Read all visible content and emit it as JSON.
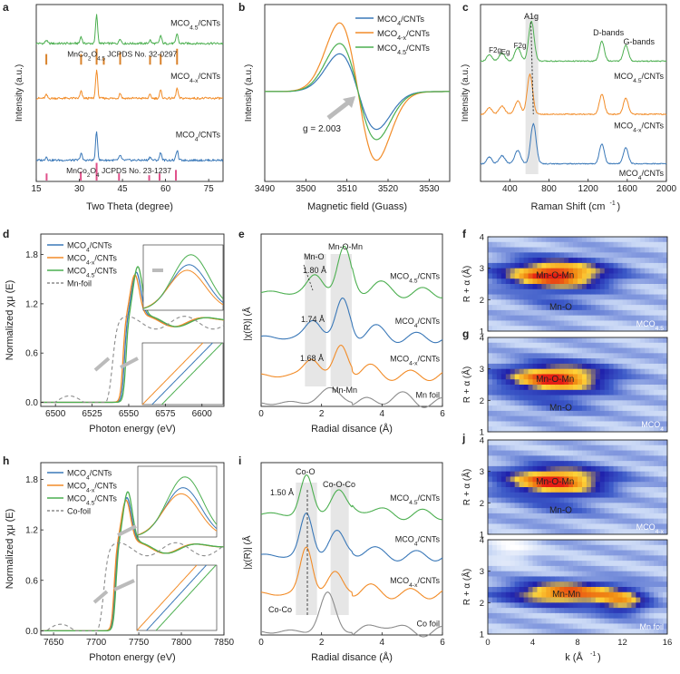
{
  "figure": {
    "panel_labels": [
      "a",
      "b",
      "c",
      "d",
      "e",
      "f",
      "g",
      "h",
      "i",
      "j"
    ]
  },
  "colors": {
    "mco45": "#4caf50",
    "mco4x": "#f28c28",
    "mco4": "#3a78b8",
    "foil": "#8c8c8c",
    "ref_orange": "#d9822b",
    "ref_pink": "#e0508a"
  },
  "chart_data": [
    {
      "id": "a",
      "type": "line",
      "xlabel": "Two Theta (degree)",
      "ylabel": "Intensity (a.u.)",
      "xlim": [
        15,
        80
      ],
      "xticks": [
        15,
        30,
        45,
        60,
        75
      ],
      "series": [
        {
          "name": "MCO4.5/CNTs",
          "color_key": "mco45",
          "peaks": [
            18.5,
            30.6,
            36.0,
            44.2,
            54.6,
            58.3,
            64.0
          ]
        },
        {
          "name": "MCO4-x/CNTs",
          "color_key": "mco4x",
          "peaks": [
            18.5,
            30.6,
            36.0,
            44.2,
            54.6,
            58.3,
            64.0
          ]
        },
        {
          "name": "MCO4/CNTs",
          "color_key": "mco4",
          "peaks": [
            18.5,
            30.6,
            36.0,
            44.2,
            54.6,
            58.3,
            64.0
          ]
        }
      ],
      "references": [
        {
          "label": "MnCo2O4.5 JCPDS No. 32-0297",
          "color_key": "ref_orange",
          "positions": [
            18.5,
            30.6,
            36.0,
            38.5,
            44.2,
            54.6,
            58.3,
            64.0
          ]
        },
        {
          "label": "MnCo2O4 JCPDS No. 23-1237",
          "color_key": "ref_pink",
          "positions": [
            18.6,
            30.5,
            36.0,
            43.8,
            54.3,
            57.9,
            63.6
          ]
        }
      ]
    },
    {
      "id": "b",
      "type": "line",
      "xlabel": "Magnetic field (Guass)",
      "ylabel": "Intensity (a.u.)",
      "xlim": [
        3490,
        3535
      ],
      "xticks": [
        3490,
        3500,
        3510,
        3520,
        3530
      ],
      "annotation": "g = 2.003",
      "series": [
        {
          "name": "MCO4/CNTs",
          "color_key": "mco4",
          "amplitude": 0.55
        },
        {
          "name": "MCO4-x/CNTs",
          "color_key": "mco4x",
          "amplitude": 1.0
        },
        {
          "name": "MCO4.5/CNTs",
          "color_key": "mco45",
          "amplitude": 0.7
        }
      ]
    },
    {
      "id": "c",
      "type": "line",
      "xlabel": "Raman Shift (cm-1)",
      "ylabel": "Intensity (a.u.)",
      "xlim": [
        100,
        2000
      ],
      "xticks": [
        400,
        800,
        1200,
        1600,
        2000
      ],
      "band_labels": [
        "F2g",
        "Eg",
        "F2g",
        "A1g",
        "D-bands",
        "G-bands"
      ],
      "series": [
        {
          "name": "MCO4.5/CNTs",
          "color_key": "mco45",
          "a1g": 620
        },
        {
          "name": "MCO4-x/CNTs",
          "color_key": "mco4x",
          "a1g": 605
        },
        {
          "name": "MCO4/CNTs",
          "color_key": "mco4",
          "a1g": 640
        }
      ]
    },
    {
      "id": "d",
      "type": "line",
      "xlabel": "Photon energy (eV)",
      "ylabel": "Normalized χμ (E)",
      "xlim": [
        6490,
        6615
      ],
      "ylim": [
        -0.05,
        2.05
      ],
      "xticks": [
        6500,
        6525,
        6550,
        6575,
        6600
      ],
      "yticks": [
        0.0,
        0.6,
        1.2,
        1.8
      ],
      "series": [
        {
          "name": "MCO4/CNTs",
          "color_key": "mco4",
          "edge": 6547
        },
        {
          "name": "MCO4-x/CNTs",
          "color_key": "mco4x",
          "edge": 6546
        },
        {
          "name": "MCO4.5/CNTs",
          "color_key": "mco45",
          "edge": 6548
        },
        {
          "name": "Mn-foil",
          "color_key": "foil",
          "edge": 6539
        }
      ]
    },
    {
      "id": "e",
      "type": "line",
      "xlabel": "Radial disance (Å)",
      "ylabel": "|χ(R)| (Å-4)",
      "xlim": [
        0,
        6
      ],
      "xticks": [
        0,
        2,
        4,
        6
      ],
      "annotations": [
        "Mn-O",
        "Mn-O-Mn",
        "1.80 Å",
        "1.74 Å",
        "1.68 Å",
        "Mn-Mn"
      ],
      "series": [
        {
          "name": "MCO4.5/CNTs",
          "color_key": "mco45",
          "mn_o": 1.8
        },
        {
          "name": "MCO4/CNTs",
          "color_key": "mco4",
          "mn_o": 1.74
        },
        {
          "name": "MCO4-x/CNTs",
          "color_key": "mco4x",
          "mn_o": 1.68
        },
        {
          "name": "Mn foil",
          "color_key": "foil",
          "mn_o": 2.3
        }
      ]
    },
    {
      "id": "f",
      "type": "heatmap",
      "xlabel": "",
      "ylabel": "R + α (Å)",
      "xlim": [
        0,
        16
      ],
      "ylim": [
        1,
        4
      ],
      "yticks": [
        1,
        2,
        3,
        4
      ],
      "label": "MCO4.5",
      "peaks": [
        {
          "label": "Mn-O-Mn",
          "k": 6,
          "r": 2.8
        },
        {
          "label": "Mn-O",
          "k": 6.5,
          "r": 1.8
        }
      ]
    },
    {
      "id": "g",
      "type": "heatmap",
      "xlabel": "",
      "ylabel": "R + α (Å)",
      "xlim": [
        0,
        16
      ],
      "ylim": [
        1,
        4
      ],
      "yticks": [
        1,
        2,
        3,
        4
      ],
      "label": "MCO4",
      "peaks": [
        {
          "label": "Mn-O-Mn",
          "k": 6,
          "r": 2.7
        },
        {
          "label": "Mn-O",
          "k": 6.5,
          "r": 1.8
        }
      ]
    },
    {
      "id": "h",
      "type": "line",
      "xlabel": "Photon energy (eV)",
      "ylabel": "Normalized χμ (E)",
      "xlim": [
        7635,
        7850
      ],
      "ylim": [
        -0.05,
        2.0
      ],
      "xticks": [
        7650,
        7700,
        7750,
        7800,
        7850
      ],
      "yticks": [
        0.0,
        0.6,
        1.2,
        1.8
      ],
      "series": [
        {
          "name": "MCO4/CNTs",
          "color_key": "mco4",
          "edge": 7722
        },
        {
          "name": "MCO4-x/CNTs",
          "color_key": "mco4x",
          "edge": 7721
        },
        {
          "name": "MCO4.5/CNTs",
          "color_key": "mco45",
          "edge": 7723
        },
        {
          "name": "Co-foil",
          "color_key": "foil",
          "edge": 7709
        }
      ]
    },
    {
      "id": "i",
      "type": "line",
      "xlabel": "Radial disance (Å)",
      "ylabel": "|χ(R)| (Å-4)",
      "xlim": [
        0,
        6
      ],
      "xticks": [
        0,
        2,
        4,
        6
      ],
      "annotations": [
        "Co-O",
        "Co-O-Co",
        "1.50 Å",
        "Co-Co"
      ],
      "series": [
        {
          "name": "MCO4.5/CNTs",
          "color_key": "mco45"
        },
        {
          "name": "MCO4/CNTs",
          "color_key": "mco4"
        },
        {
          "name": "MCO4-x/CNTs",
          "color_key": "mco4x"
        },
        {
          "name": "Co foil",
          "color_key": "foil"
        }
      ]
    },
    {
      "id": "j",
      "type": "heatmap",
      "xlabel": "k (Å-1)",
      "ylabel": "R + α (Å)",
      "xlim": [
        0,
        16
      ],
      "ylim": [
        1,
        4
      ],
      "xticks": [
        0,
        4,
        8,
        12,
        16
      ],
      "yticks": [
        1,
        2,
        3,
        4
      ],
      "panels": [
        {
          "label": "MCO4-x",
          "peaks": [
            {
              "label": "Mn-O-Mn",
              "k": 6,
              "r": 2.7
            },
            {
              "label": "Mn-O",
              "k": 6.5,
              "r": 1.8
            }
          ]
        },
        {
          "label": "Mn foil",
          "peaks": [
            {
              "label": "Mn-Mn",
              "k": 7,
              "r": 2.3
            }
          ]
        }
      ]
    }
  ]
}
